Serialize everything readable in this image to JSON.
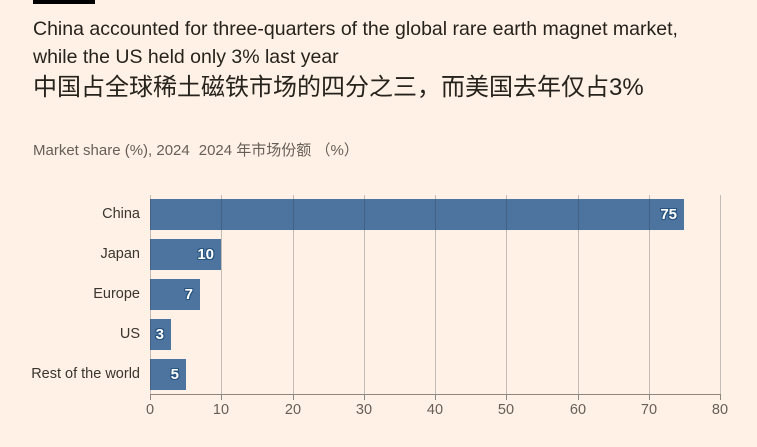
{
  "header": {
    "title_line1": "China accounted for three-quarters of the global rare earth magnet market,",
    "title_line2": "while the US held only 3% last year",
    "title_zh": "中国占全球稀土磁铁市场的四分之三，而美国去年仅占3%",
    "subtitle_en": "Market share (%), 2024",
    "subtitle_zh": "2024 年市场份额 （%）"
  },
  "colors": {
    "background": "#fff1e5",
    "bar": "#4d749f",
    "title_text": "#26221c",
    "muted_text": "#655f58",
    "axis": "#8e877c",
    "top_rule": "#000000",
    "value_label": "#ffffff",
    "value_label_outline": "#27547f"
  },
  "chart_data": {
    "type": "bar",
    "orientation": "horizontal",
    "title": "China accounted for three-quarters of the global rare earth magnet market, while the US held only 3% last year",
    "title_zh": "中国占全球稀土磁铁市场的四分之三，而美国去年仅占3%",
    "subtitle": "Market share (%), 2024  2024 年市场份额 （%）",
    "categories": [
      "China",
      "Japan",
      "Europe",
      "US",
      "Rest of the world"
    ],
    "values": [
      75,
      10,
      7,
      3,
      5
    ],
    "xlim": [
      0,
      80
    ],
    "x_ticks": [
      0,
      10,
      20,
      30,
      40,
      50,
      60,
      70,
      80
    ],
    "grid": true,
    "legend": "none",
    "value_labels": "inside-end"
  }
}
